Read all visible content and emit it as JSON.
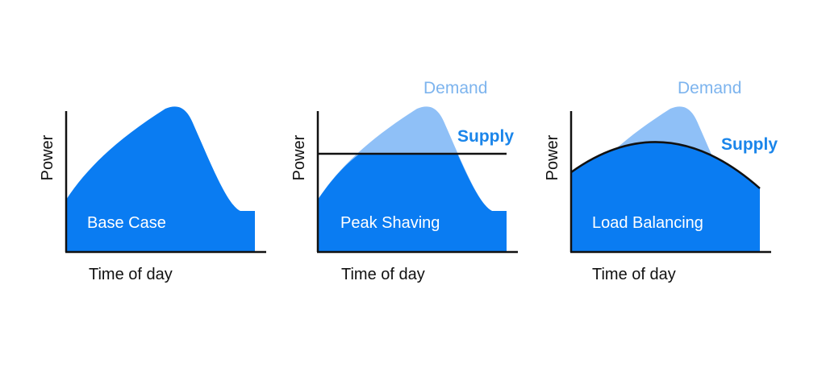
{
  "colors": {
    "demand_fill": "#0a7cf2",
    "demand_light": "#8fc0f7",
    "demand_label": "#7db4ee",
    "supply_label": "#1a85ea",
    "axis": "#111111",
    "inner_text": "#ffffff",
    "background": "#ffffff"
  },
  "panels": [
    {
      "id": "base-case",
      "inner_label": "Base Case",
      "xlabel": "Time of day",
      "ylabel": "Power",
      "demand_label": "",
      "supply_label": "",
      "supply_shape": "none"
    },
    {
      "id": "peak-shaving",
      "inner_label": "Peak Shaving",
      "xlabel": "Time of day",
      "ylabel": "Power",
      "demand_label": "Demand",
      "supply_label": "Supply",
      "supply_shape": "flat"
    },
    {
      "id": "load-balancing",
      "inner_label": "Load Balancing",
      "xlabel": "Time of day",
      "ylabel": "Power",
      "demand_label": "Demand",
      "supply_label": "Supply",
      "supply_shape": "arc"
    }
  ]
}
